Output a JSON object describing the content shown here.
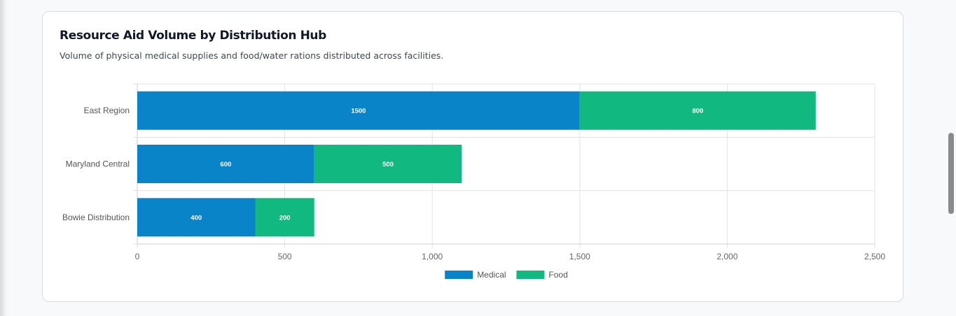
{
  "card": {
    "title": "Resource Aid Volume by Distribution Hub",
    "subtitle": "Volume of physical medical supplies and food/water rations distributed across facilities."
  },
  "chart_data": {
    "type": "bar",
    "orientation": "horizontal",
    "stacked": true,
    "categories": [
      "East Region",
      "Maryland Central",
      "Bowie Distribution"
    ],
    "series": [
      {
        "name": "Medical",
        "values": [
          1500,
          600,
          400
        ],
        "color": "#0984c8"
      },
      {
        "name": "Food",
        "values": [
          800,
          500,
          200
        ],
        "color": "#11b981"
      }
    ],
    "xlim": [
      0,
      2500
    ],
    "xticks": [
      0,
      500,
      1000,
      1500,
      2000,
      2500
    ],
    "xtick_labels": [
      "0",
      "500",
      "1,000",
      "1,500",
      "2,000",
      "2,500"
    ],
    "grid": true,
    "legend": "bottom-center",
    "data_labels": true
  }
}
